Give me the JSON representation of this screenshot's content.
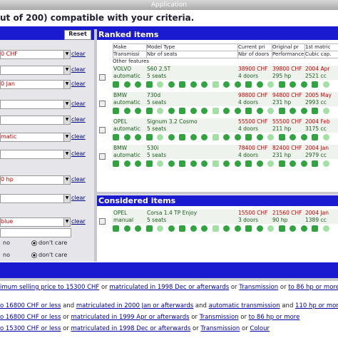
{
  "window": {
    "title": "Application"
  },
  "header": {
    "text": "ut of 200) compatible with your criteria."
  },
  "filters": {
    "reset": "Reset",
    "clear": "clear",
    "rows": [
      {
        "value": "0 CHF"
      },
      {},
      {
        "value": "0 Jan"
      },
      {},
      {},
      {
        "value": "matic"
      },
      {},
      {
        "value": "0 hp"
      },
      {},
      {
        "value": "blue"
      }
    ],
    "radios": [
      {
        "no": "no",
        "dont_care": "don't care"
      },
      {
        "no": "no",
        "dont_care": "don't care"
      }
    ]
  },
  "ranked": {
    "title": "Ranked items",
    "columns": [
      [
        "Make",
        "Model Type",
        "Current pri",
        "Original pr",
        "1st matric"
      ],
      [
        "Transmissi",
        "Nbr of seats",
        "Nbr of doors",
        "Performance",
        "Cubic cap."
      ]
    ],
    "other": "Other features",
    "items": [
      [
        [
          "VOLVO",
          "S60 2.5T",
          "38900 CHF",
          "39800 CHF",
          "2004 Apr"
        ],
        [
          "automatic",
          "5 seats",
          "4 doors",
          "295 hp",
          "2521 cc"
        ]
      ],
      [
        [
          "BMW",
          "730d",
          "98800 CHF",
          "94800 CHF",
          "2005 May"
        ],
        [
          "automatic",
          "5 seats",
          "4 doors",
          "231 hp",
          "2993 cc"
        ]
      ],
      [
        [
          "OPEL",
          "Signum 3.2 Cosmo",
          "55500 CHF",
          "55500 CHF",
          "2004 Feb"
        ],
        [
          "automatic",
          "5 seats",
          "4 doors",
          "211 hp",
          "3175 cc"
        ]
      ],
      [
        [
          "BMW",
          "530i",
          "78400 CHF",
          "82400 CHF",
          "2004 Jan"
        ],
        [
          "automatic",
          "5 seats",
          "4 doors",
          "231 hp",
          "2979 cc"
        ]
      ]
    ]
  },
  "considered": {
    "title": "Considered items",
    "items": [
      [
        [
          "OPEL",
          "Corsa 1.4 TP Enjoy",
          "15500 CHF",
          "21560 CHF",
          "2004 Jan"
        ],
        [
          "manual",
          "5 seats",
          "3 doors",
          "90 hp",
          "1389 cc"
        ]
      ]
    ]
  },
  "queries": [
    [
      {
        "t": "imum selling price to 15300 CHF",
        "link": true
      },
      {
        "t": " or "
      },
      {
        "t": "matriculated in 1998 Dec or afterwards",
        "link": true
      },
      {
        "t": " or "
      },
      {
        "t": "Transmission",
        "link": true
      },
      {
        "t": " or "
      },
      {
        "t": "to 86 hp or more",
        "link": true
      }
    ],
    [
      {
        "t": "o 16800 CHF or less",
        "link": true
      },
      {
        "t": " and "
      },
      {
        "t": "matriculated in 2000 Jan or afterwards",
        "link": true
      },
      {
        "t": " and "
      },
      {
        "t": "automatic transmission",
        "link": true
      },
      {
        "t": " and "
      },
      {
        "t": "110 hp or more",
        "link": true
      }
    ],
    [
      {
        "t": "o 16800 CHF or less",
        "link": true
      },
      {
        "t": " or "
      },
      {
        "t": "matriculated in 1999 Apr or afterwards",
        "link": true
      },
      {
        "t": " or "
      },
      {
        "t": "Transmission",
        "link": true
      },
      {
        "t": " or "
      },
      {
        "t": "to 86 hp or more",
        "link": true
      }
    ],
    [
      {
        "t": "o 15300 CHF or less",
        "link": true
      },
      {
        "t": " or "
      },
      {
        "t": "matriculated in 1998 Dec or afterwards",
        "link": true
      },
      {
        "t": " or "
      },
      {
        "t": "Transmission",
        "link": true
      },
      {
        "t": " or "
      },
      {
        "t": "Colour",
        "link": true
      }
    ]
  ]
}
